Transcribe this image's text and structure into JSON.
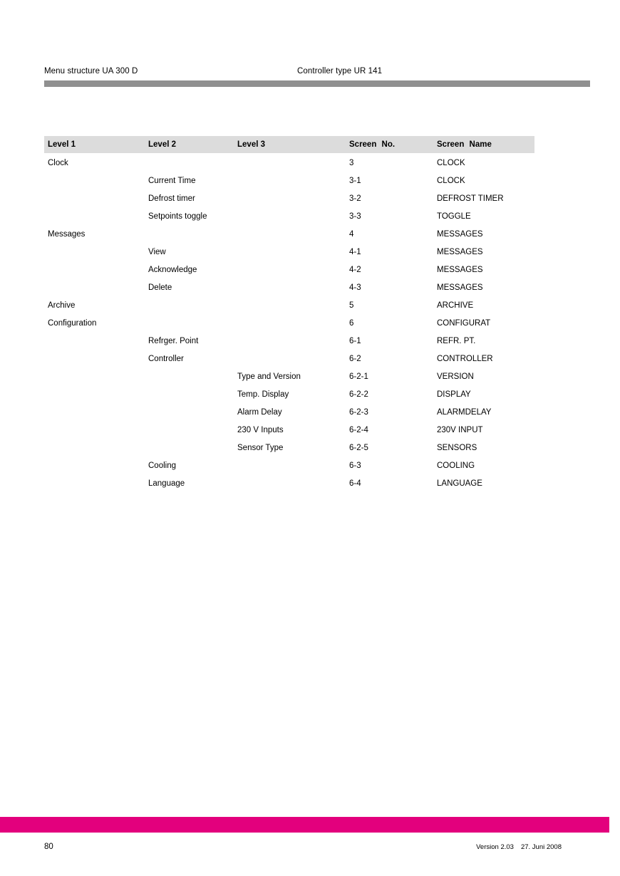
{
  "header": {
    "left": "Menu structure UA 300 D",
    "right": "Controller type UR 141"
  },
  "table": {
    "columns": [
      "Level 1",
      "Level 2",
      "Level 3",
      "Screen No.",
      "Screen Name"
    ],
    "rows": [
      [
        "Clock",
        "",
        "",
        "3",
        "CLOCK"
      ],
      [
        "",
        "Current Time",
        "",
        "3-1",
        "CLOCK"
      ],
      [
        "",
        "Defrost timer",
        "",
        "3-2",
        "DEFROST TIMER"
      ],
      [
        "",
        "Setpoints toggle",
        "",
        "3-3",
        "TOGGLE"
      ],
      [
        "Messages",
        "",
        "",
        "4",
        "MESSAGES"
      ],
      [
        "",
        "View",
        "",
        "4-1",
        "MESSAGES"
      ],
      [
        "",
        "Acknowledge",
        "",
        "4-2",
        "MESSAGES"
      ],
      [
        "",
        "Delete",
        "",
        "4-3",
        "MESSAGES"
      ],
      [
        "Archive",
        "",
        "",
        "5",
        "ARCHIVE"
      ],
      [
        "Configuration",
        "",
        "",
        "6",
        "CONFIGURAT"
      ],
      [
        "",
        "Refrger. Point",
        "",
        "6-1",
        "REFR. PT."
      ],
      [
        "",
        "Controller",
        "",
        "6-2",
        "CONTROLLER"
      ],
      [
        "",
        "",
        "Type and Version",
        "6-2-1",
        "VERSION"
      ],
      [
        "",
        "",
        "Temp. Display",
        "6-2-2",
        "DISPLAY"
      ],
      [
        "",
        "",
        "Alarm Delay",
        "6-2-3",
        "ALARMDELAY"
      ],
      [
        "",
        "",
        "230 V Inputs",
        "6-2-4",
        "230V INPUT"
      ],
      [
        "",
        "",
        "Sensor Type",
        "6-2-5",
        "SENSORS"
      ],
      [
        "",
        "Cooling",
        "",
        "6-3",
        "COOLING"
      ],
      [
        "",
        "Language",
        "",
        "6-4",
        "LANGUAGE"
      ]
    ]
  },
  "footer": {
    "page_number": "80",
    "version": "Version 2.03",
    "date": "27. Juni 2008"
  },
  "colors": {
    "accent_magenta": "#e3007d",
    "header_rule_gray": "#909090",
    "table_header_bg": "#dcdcdc"
  }
}
